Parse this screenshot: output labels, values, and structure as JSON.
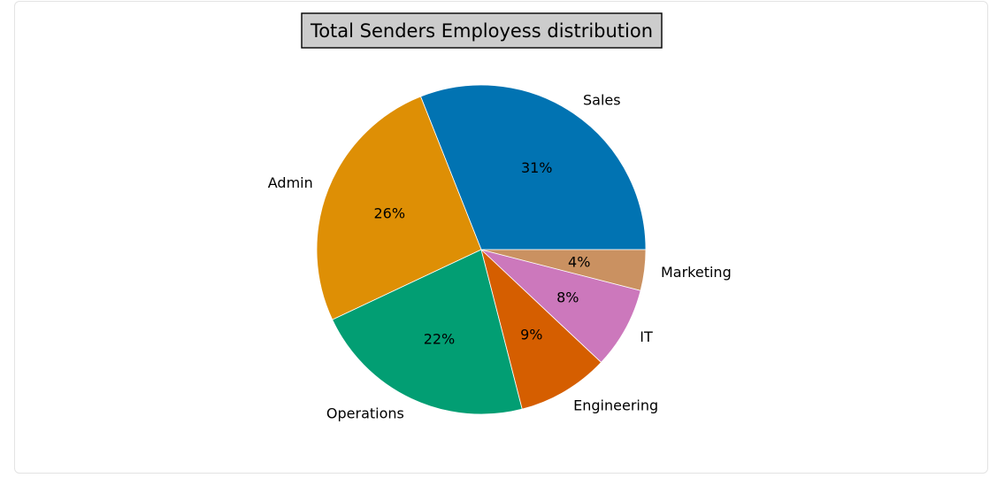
{
  "chart_data": {
    "type": "pie",
    "title": "Total Senders Employess distribution",
    "start_angle_deg": 0,
    "direction": "counterclockwise",
    "slices": [
      {
        "label": "Sales",
        "value": 31,
        "pct_label": "31%",
        "color": "#0173b2"
      },
      {
        "label": "Admin",
        "value": 26,
        "pct_label": "26%",
        "color": "#de8f05"
      },
      {
        "label": "Operations",
        "value": 22,
        "pct_label": "22%",
        "color": "#029e73"
      },
      {
        "label": "Engineering",
        "value": 9,
        "pct_label": "9%",
        "color": "#d55e00"
      },
      {
        "label": "IT",
        "value": 8,
        "pct_label": "8%",
        "color": "#cc78bc"
      },
      {
        "label": "Marketing",
        "value": 4,
        "pct_label": "4%",
        "color": "#ca9161"
      }
    ]
  }
}
